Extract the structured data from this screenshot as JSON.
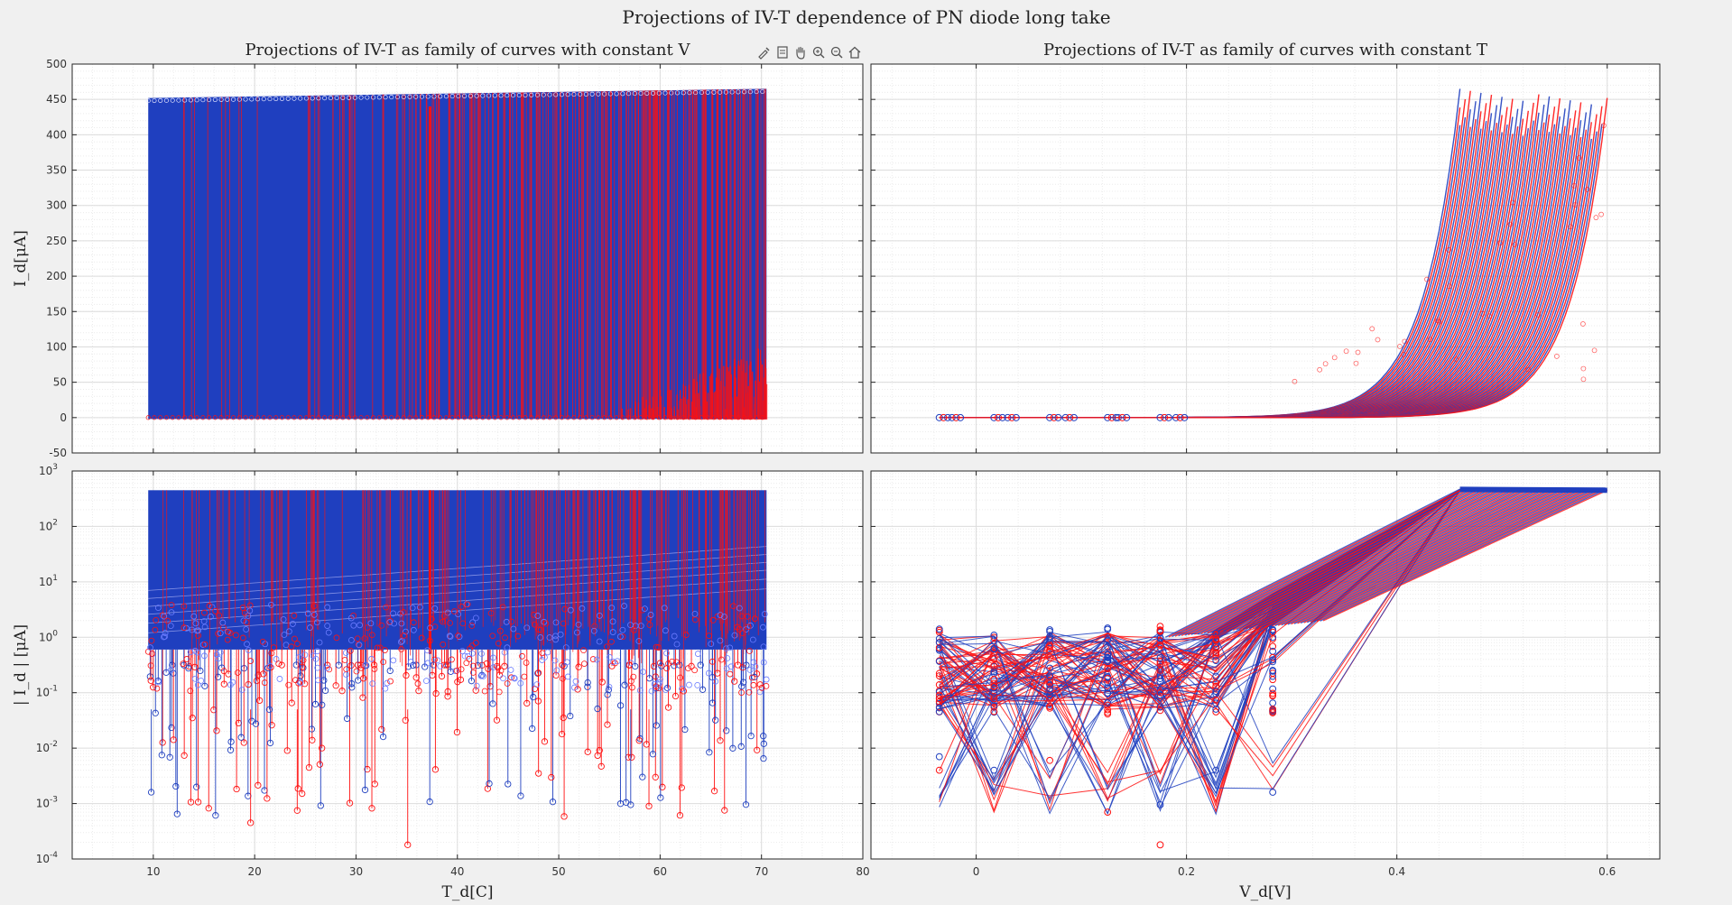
{
  "figure": {
    "suptitle": "Projections of IV-T dependence of PN diode long take"
  },
  "toolbar": {
    "icons": [
      "brush-icon",
      "datatip-icon",
      "pan-hand-icon",
      "zoom-in-icon",
      "zoom-out-icon",
      "home-icon"
    ]
  },
  "colors": {
    "blue": "#1f3fbf",
    "red": "#ff1010",
    "axes_bg": "#ffffff",
    "figure_bg": "#f0f0f0",
    "grid": "#dcdcdc"
  },
  "chart_data": [
    {
      "type": "line",
      "title": "Projections of IV-T as family of curves with constant V",
      "xlabel": "",
      "ylabel": "I_d[μA]",
      "xlim": [
        2,
        80
      ],
      "ylim": [
        -50,
        500
      ],
      "yscale": "linear",
      "xticks": [
        10,
        20,
        30,
        40,
        50,
        60,
        70,
        80
      ],
      "xticklabels": [],
      "yticks": [
        -50,
        0,
        50,
        100,
        150,
        200,
        250,
        300,
        350,
        400,
        450,
        500
      ],
      "yticklabels": [
        "-50",
        "0",
        "50",
        "100",
        "150",
        "200",
        "250",
        "300",
        "350",
        "400",
        "450",
        "500"
      ],
      "grid": true,
      "series": [
        {
          "color": "blue",
          "T_range": [
            9.5,
            70.5
          ],
          "I_top_range": [
            452,
            465
          ],
          "I_bottom": -2
        },
        {
          "color": "red",
          "T_range": [
            9.5,
            70.5
          ],
          "I_top_range": [
            452,
            465
          ],
          "I_bottom": -2,
          "highlight_T": 37.3
        }
      ]
    },
    {
      "type": "line",
      "title": "Projections of IV-T as family of curves with constant T",
      "xlabel": "",
      "ylabel": "",
      "xlim": [
        -0.1,
        0.65
      ],
      "ylim": [
        -50,
        500
      ],
      "yscale": "linear",
      "xticks": [
        0,
        0.2,
        0.4,
        0.6
      ],
      "xticklabels": [],
      "yticks": [
        -50,
        0,
        50,
        100,
        150,
        200,
        250,
        300,
        350,
        400,
        450,
        500
      ],
      "yticklabels": [],
      "grid": true,
      "series": [
        {
          "color": "blue",
          "V_range": [
            -0.035,
            0.6
          ],
          "I_at_knee_V": [
            0.46,
            0.6
          ],
          "I_max_range": [
            450,
            465
          ]
        },
        {
          "color": "red",
          "V_range": [
            -0.035,
            0.6
          ],
          "I_at_knee_V": [
            0.46,
            0.6
          ],
          "I_max_range": [
            450,
            465
          ]
        }
      ]
    },
    {
      "type": "line",
      "title": "",
      "xlabel": "T_d[C]",
      "ylabel": "| I_d | [μA]",
      "xlim": [
        2,
        80
      ],
      "ylim": [
        0.0001,
        1000
      ],
      "yscale": "log",
      "xticks": [
        10,
        20,
        30,
        40,
        50,
        60,
        70,
        80
      ],
      "xticklabels": [
        "10",
        "20",
        "30",
        "40",
        "50",
        "60",
        "70",
        "80"
      ],
      "yticks": [
        0.0001,
        0.001,
        0.01,
        0.1,
        1,
        10,
        100,
        1000
      ],
      "yticklabels": [
        "10^-4",
        "10^-3",
        "10^-2",
        "10^-1",
        "10^0",
        "10^1",
        "10^2",
        "10^3"
      ],
      "grid": true,
      "series": [
        {
          "color": "blue",
          "T_range": [
            9.5,
            70.5
          ],
          "I_top": 450,
          "I_min_observed": 0.0016
        },
        {
          "color": "red",
          "T_range": [
            9.5,
            70.5
          ],
          "I_top": 450,
          "I_min_observed": 0.00018
        }
      ]
    },
    {
      "type": "line",
      "title": "",
      "xlabel": "V_d[V]",
      "ylabel": "",
      "xlim": [
        -0.1,
        0.65
      ],
      "ylim": [
        0.0001,
        1000
      ],
      "yscale": "log",
      "xticks": [
        0,
        0.2,
        0.4,
        0.6
      ],
      "xticklabels": [
        "0",
        "0.2",
        "0.4",
        "0.6"
      ],
      "yticks": [
        0.0001,
        0.001,
        0.01,
        0.1,
        1,
        10,
        100,
        1000
      ],
      "yticklabels": [],
      "grid": true,
      "series": [
        {
          "color": "blue",
          "V_points": [
            -0.035,
            0.017,
            0.07,
            0.125,
            0.175,
            0.228,
            0.282,
            0.46,
            0.6
          ]
        },
        {
          "color": "red",
          "V_points": [
            -0.035,
            0.017,
            0.07,
            0.125,
            0.175,
            0.228,
            0.282,
            0.46,
            0.6
          ]
        }
      ]
    }
  ]
}
